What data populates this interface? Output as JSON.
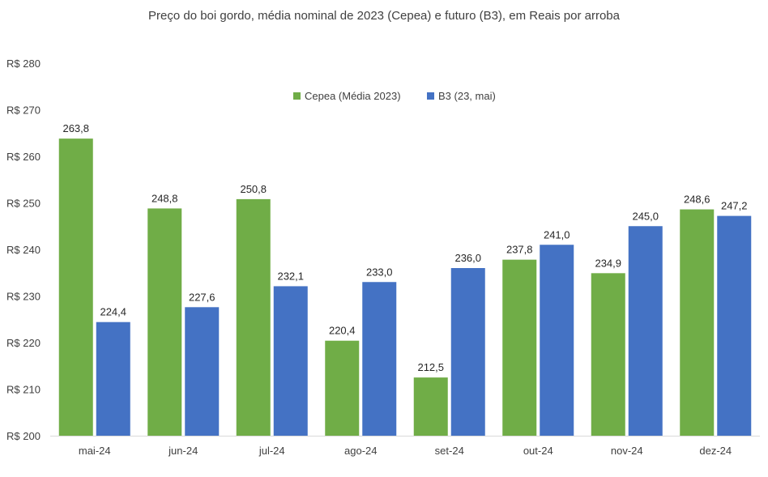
{
  "chart_data": {
    "type": "bar",
    "title": "Preço do boi gordo, média nominal de 2023 (Cepea) e futuro (B3), em Reais por arroba",
    "categories": [
      "mai-24",
      "jun-24",
      "jul-24",
      "ago-24",
      "set-24",
      "out-24",
      "nov-24",
      "dez-24"
    ],
    "series": [
      {
        "name": "Cepea (Média 2023)",
        "color": "#70AD47",
        "values": [
          263.8,
          248.8,
          250.8,
          220.4,
          212.5,
          237.8,
          234.9,
          248.6
        ],
        "labels": [
          "263,8",
          "248,8",
          "250,8",
          "220,4",
          "212,5",
          "237,8",
          "234,9",
          "248,6"
        ]
      },
      {
        "name": "B3 (23, mai)",
        "color": "#4472C4",
        "values": [
          224.4,
          227.6,
          232.1,
          233.0,
          236.0,
          241.0,
          245.0,
          247.2
        ],
        "labels": [
          "224,4",
          "227,6",
          "232,1",
          "233,0",
          "236,0",
          "241,0",
          "245,0",
          "247,2"
        ]
      }
    ],
    "ylim": [
      200,
      280
    ],
    "yticks": [
      {
        "value": 200,
        "label": "R$ 200"
      },
      {
        "value": 210,
        "label": "R$ 210"
      },
      {
        "value": 220,
        "label": "R$ 220"
      },
      {
        "value": 230,
        "label": "R$ 230"
      },
      {
        "value": 240,
        "label": "R$ 240"
      },
      {
        "value": 250,
        "label": "R$ 250"
      },
      {
        "value": 260,
        "label": "R$ 260"
      },
      {
        "value": 270,
        "label": "R$ 270"
      },
      {
        "value": 280,
        "label": "R$ 280"
      }
    ],
    "xlabel": "",
    "ylabel": "",
    "grid": false,
    "legend": "top-center",
    "axis_color": "#D9D9D9"
  }
}
